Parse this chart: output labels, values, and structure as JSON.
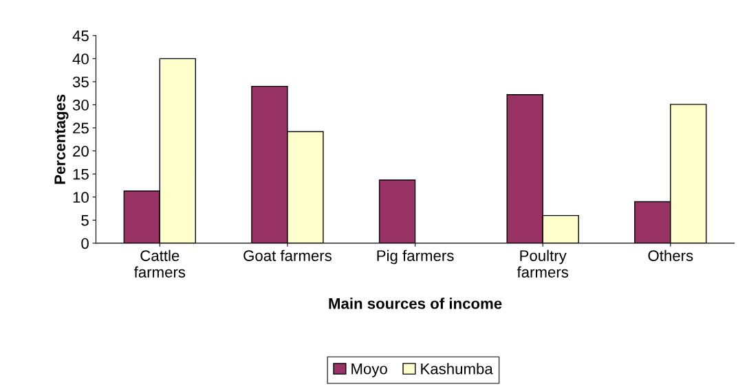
{
  "chart_data": {
    "type": "bar",
    "xlabel": "Main sources of income",
    "ylabel": "Percentages",
    "categories": [
      "Cattle\nfarmers",
      "Goat farmers",
      "Pig farmers",
      "Poultry\nfarmers",
      "Others"
    ],
    "series": [
      {
        "name": "Moyo",
        "color": "#993366",
        "values": [
          11.3,
          34,
          13.7,
          32.2,
          9
        ]
      },
      {
        "name": "Kashumba",
        "color": "#ffffcc",
        "values": [
          40,
          24.2,
          null,
          6,
          30.1
        ]
      }
    ],
    "ylim": [
      0,
      45
    ],
    "yticks": [
      0,
      5,
      10,
      15,
      20,
      25,
      30,
      35,
      40,
      45
    ],
    "grid": false,
    "legend": "bottom"
  }
}
